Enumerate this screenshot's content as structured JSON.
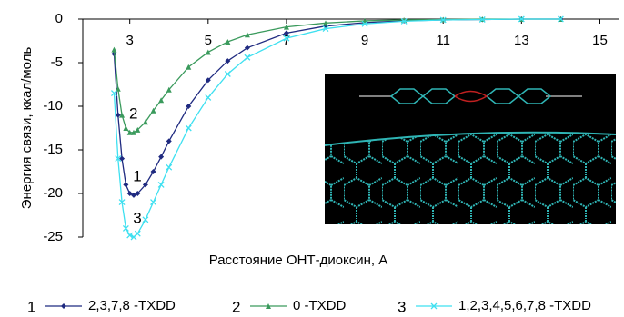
{
  "chart_data": {
    "type": "line",
    "x_label": "Расстояние ОНТ-диоксин, А",
    "y_label": "Энергия связи, ккал/моль",
    "x": [
      2.6,
      2.7,
      2.8,
      2.9,
      3.0,
      3.1,
      3.2,
      3.4,
      3.6,
      3.8,
      4.0,
      4.5,
      5,
      5.5,
      6,
      7,
      8,
      9,
      10,
      11,
      12,
      13,
      14
    ],
    "series": [
      {
        "label": "1",
        "name": "2,3,7,8 -TXDD",
        "color": "#1f2a80",
        "marker": "diamond",
        "values": [
          -4,
          -11,
          -16,
          -19,
          -20,
          -20.2,
          -20,
          -19,
          -17.5,
          -15.8,
          -14,
          -10,
          -7,
          -4.8,
          -3.3,
          -1.6,
          -0.8,
          -0.4,
          -0.2,
          -0.1,
          -0.05,
          0,
          0
        ]
      },
      {
        "label": "2",
        "name": "0 -TXDD",
        "color": "#3a9a5c",
        "marker": "triangle",
        "values": [
          -3.5,
          -8,
          -11,
          -12.5,
          -13,
          -13,
          -12.7,
          -11.8,
          -10.5,
          -9.3,
          -8.1,
          -5.5,
          -3.8,
          -2.6,
          -1.8,
          -0.9,
          -0.45,
          -0.2,
          -0.1,
          -0.05,
          0,
          0,
          0
        ]
      },
      {
        "label": "3",
        "name": "1,2,3,4,5,6,7,8 -TXDD",
        "color": "#3fe0f0",
        "marker": "cross",
        "values": [
          -8.5,
          -16,
          -21,
          -24,
          -24.8,
          -25,
          -24.6,
          -23,
          -21,
          -19,
          -17,
          -12.5,
          -9,
          -6.3,
          -4.4,
          -2.2,
          -1.1,
          -0.55,
          -0.25,
          -0.1,
          -0.05,
          0,
          0
        ]
      }
    ],
    "xlim": [
      1.8,
      15.5
    ],
    "xticks": [
      3,
      5,
      7,
      9,
      11,
      13,
      15
    ],
    "ylim": [
      -25,
      0
    ],
    "yticks": [
      0,
      -5,
      -10,
      -15,
      -20,
      -25
    ],
    "legend": "bottom"
  }
}
